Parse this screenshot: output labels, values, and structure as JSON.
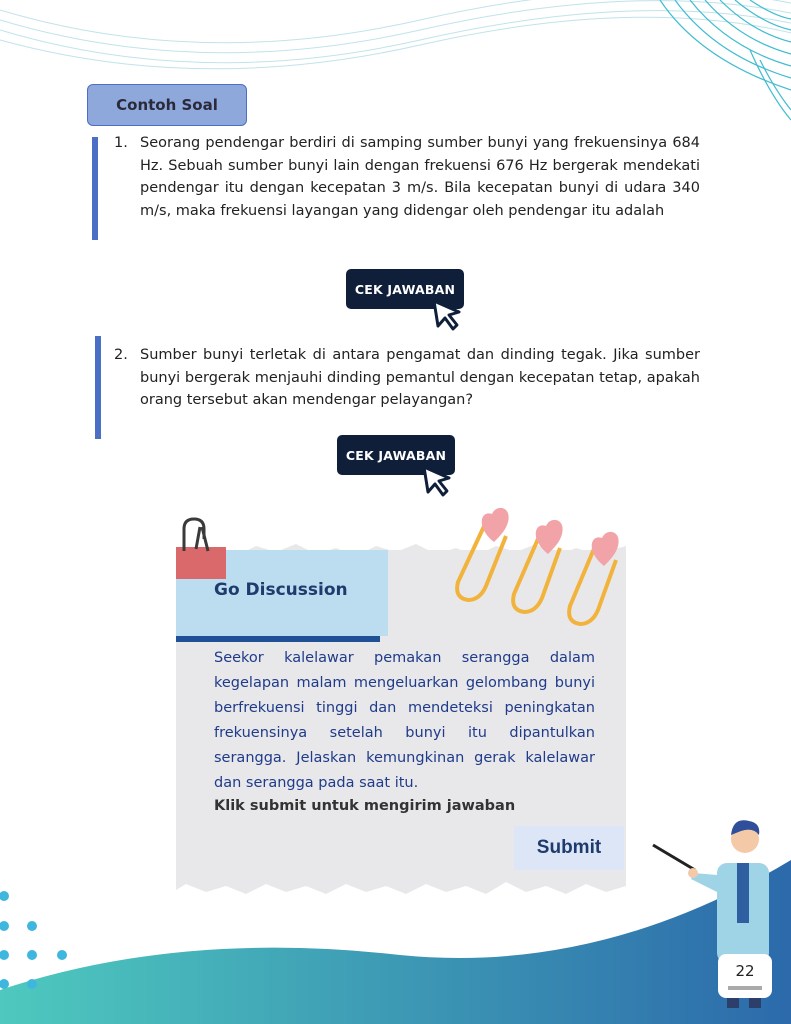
{
  "colors": {
    "accent": "#4a6fc4",
    "badge_bg": "#8fa8dc",
    "button_dark": "#0f1f3a",
    "teal": "#3fc1c0",
    "blue": "#2f6fb5"
  },
  "header": {
    "badge": "Contoh Soal"
  },
  "questions": [
    {
      "number": "1.",
      "text": "Seorang pendengar berdiri  di samping sumber bunyi yang frekuensinya 684 Hz. Sebuah sumber bunyi lain dengan frekuensi 676 Hz bergerak mendekati pendengar itu dengan kecepatan 3 m/s. Bila kecepatan bunyi di udara 340 m/s, maka frekuensi layangan yang didengar oleh pendengar itu adalah",
      "button": "CEK JAWABAN"
    },
    {
      "number": "2.",
      "text": "Sumber bunyi terletak di antara pengamat dan dinding tegak. Jika sumber bunyi bergerak menjauhi dinding pemantul dengan kecepatan tetap, apakah orang tersebut akan mendengar pelayangan?",
      "button": "CEK JAWABAN"
    }
  ],
  "discussion": {
    "title": "Go Discussion",
    "text": "Seekor kalelawar pemakan serangga dalam kegelapan malam mengeluarkan  gelombang bunyi berfrekuensi tinggi dan mendeteksi peningkatan frekuensinya setelah bunyi itu dipantulkan serangga. Jelaskan kemungkinan gerak kalelawar dan serangga pada saat itu.",
    "instruction": "Klik submit untuk mengirim jawaban",
    "submit": "Submit"
  },
  "icons": [
    "cursor-icon",
    "binder-clip-icon",
    "heart-paperclip-icon",
    "teacher-illustration"
  ],
  "footer": {
    "page_number": "22"
  }
}
